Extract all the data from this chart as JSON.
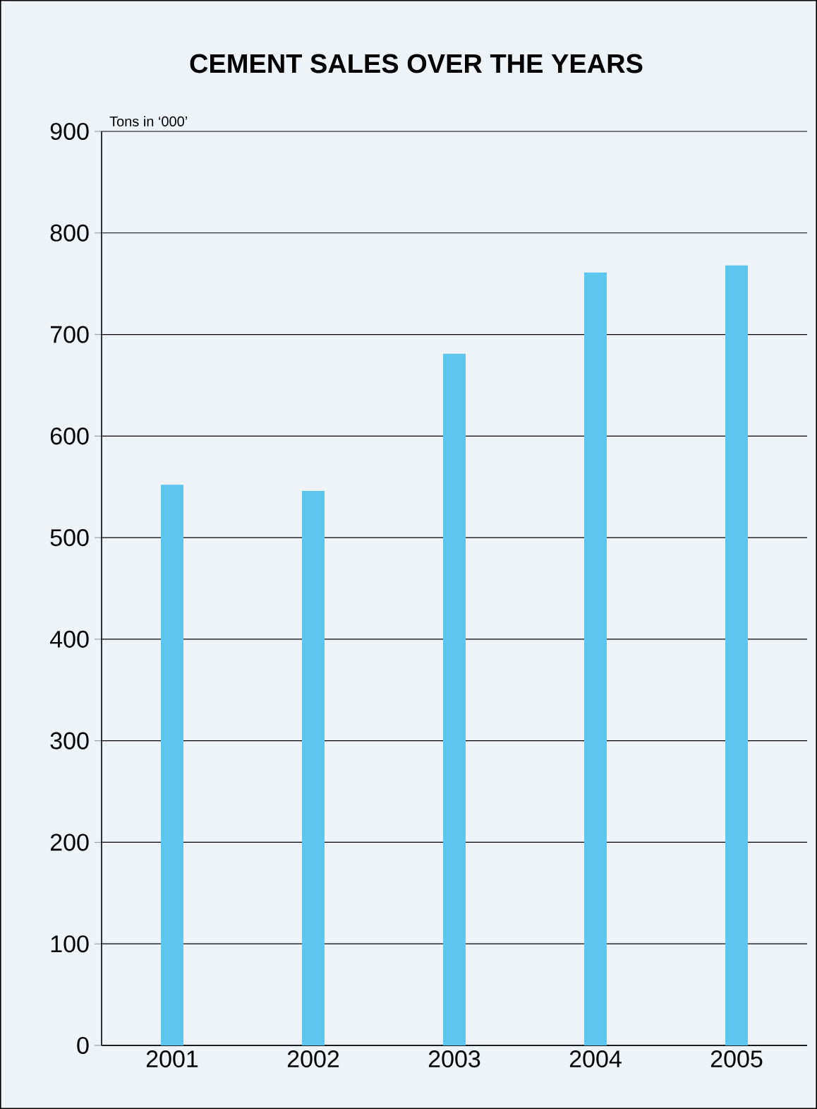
{
  "chart_data": {
    "type": "bar",
    "title": "CEMENT SALES OVER THE YEARS",
    "ylabel": "Tons in ‘000’",
    "categories": [
      "2001",
      "2002",
      "2003",
      "2004",
      "2005"
    ],
    "values": [
      552,
      546,
      681,
      761,
      768
    ],
    "color": "#5cc6ee",
    "ylim": [
      0,
      900
    ],
    "yticks": [
      0,
      100,
      200,
      300,
      400,
      500,
      600,
      700,
      800,
      900
    ],
    "grid": "y"
  }
}
